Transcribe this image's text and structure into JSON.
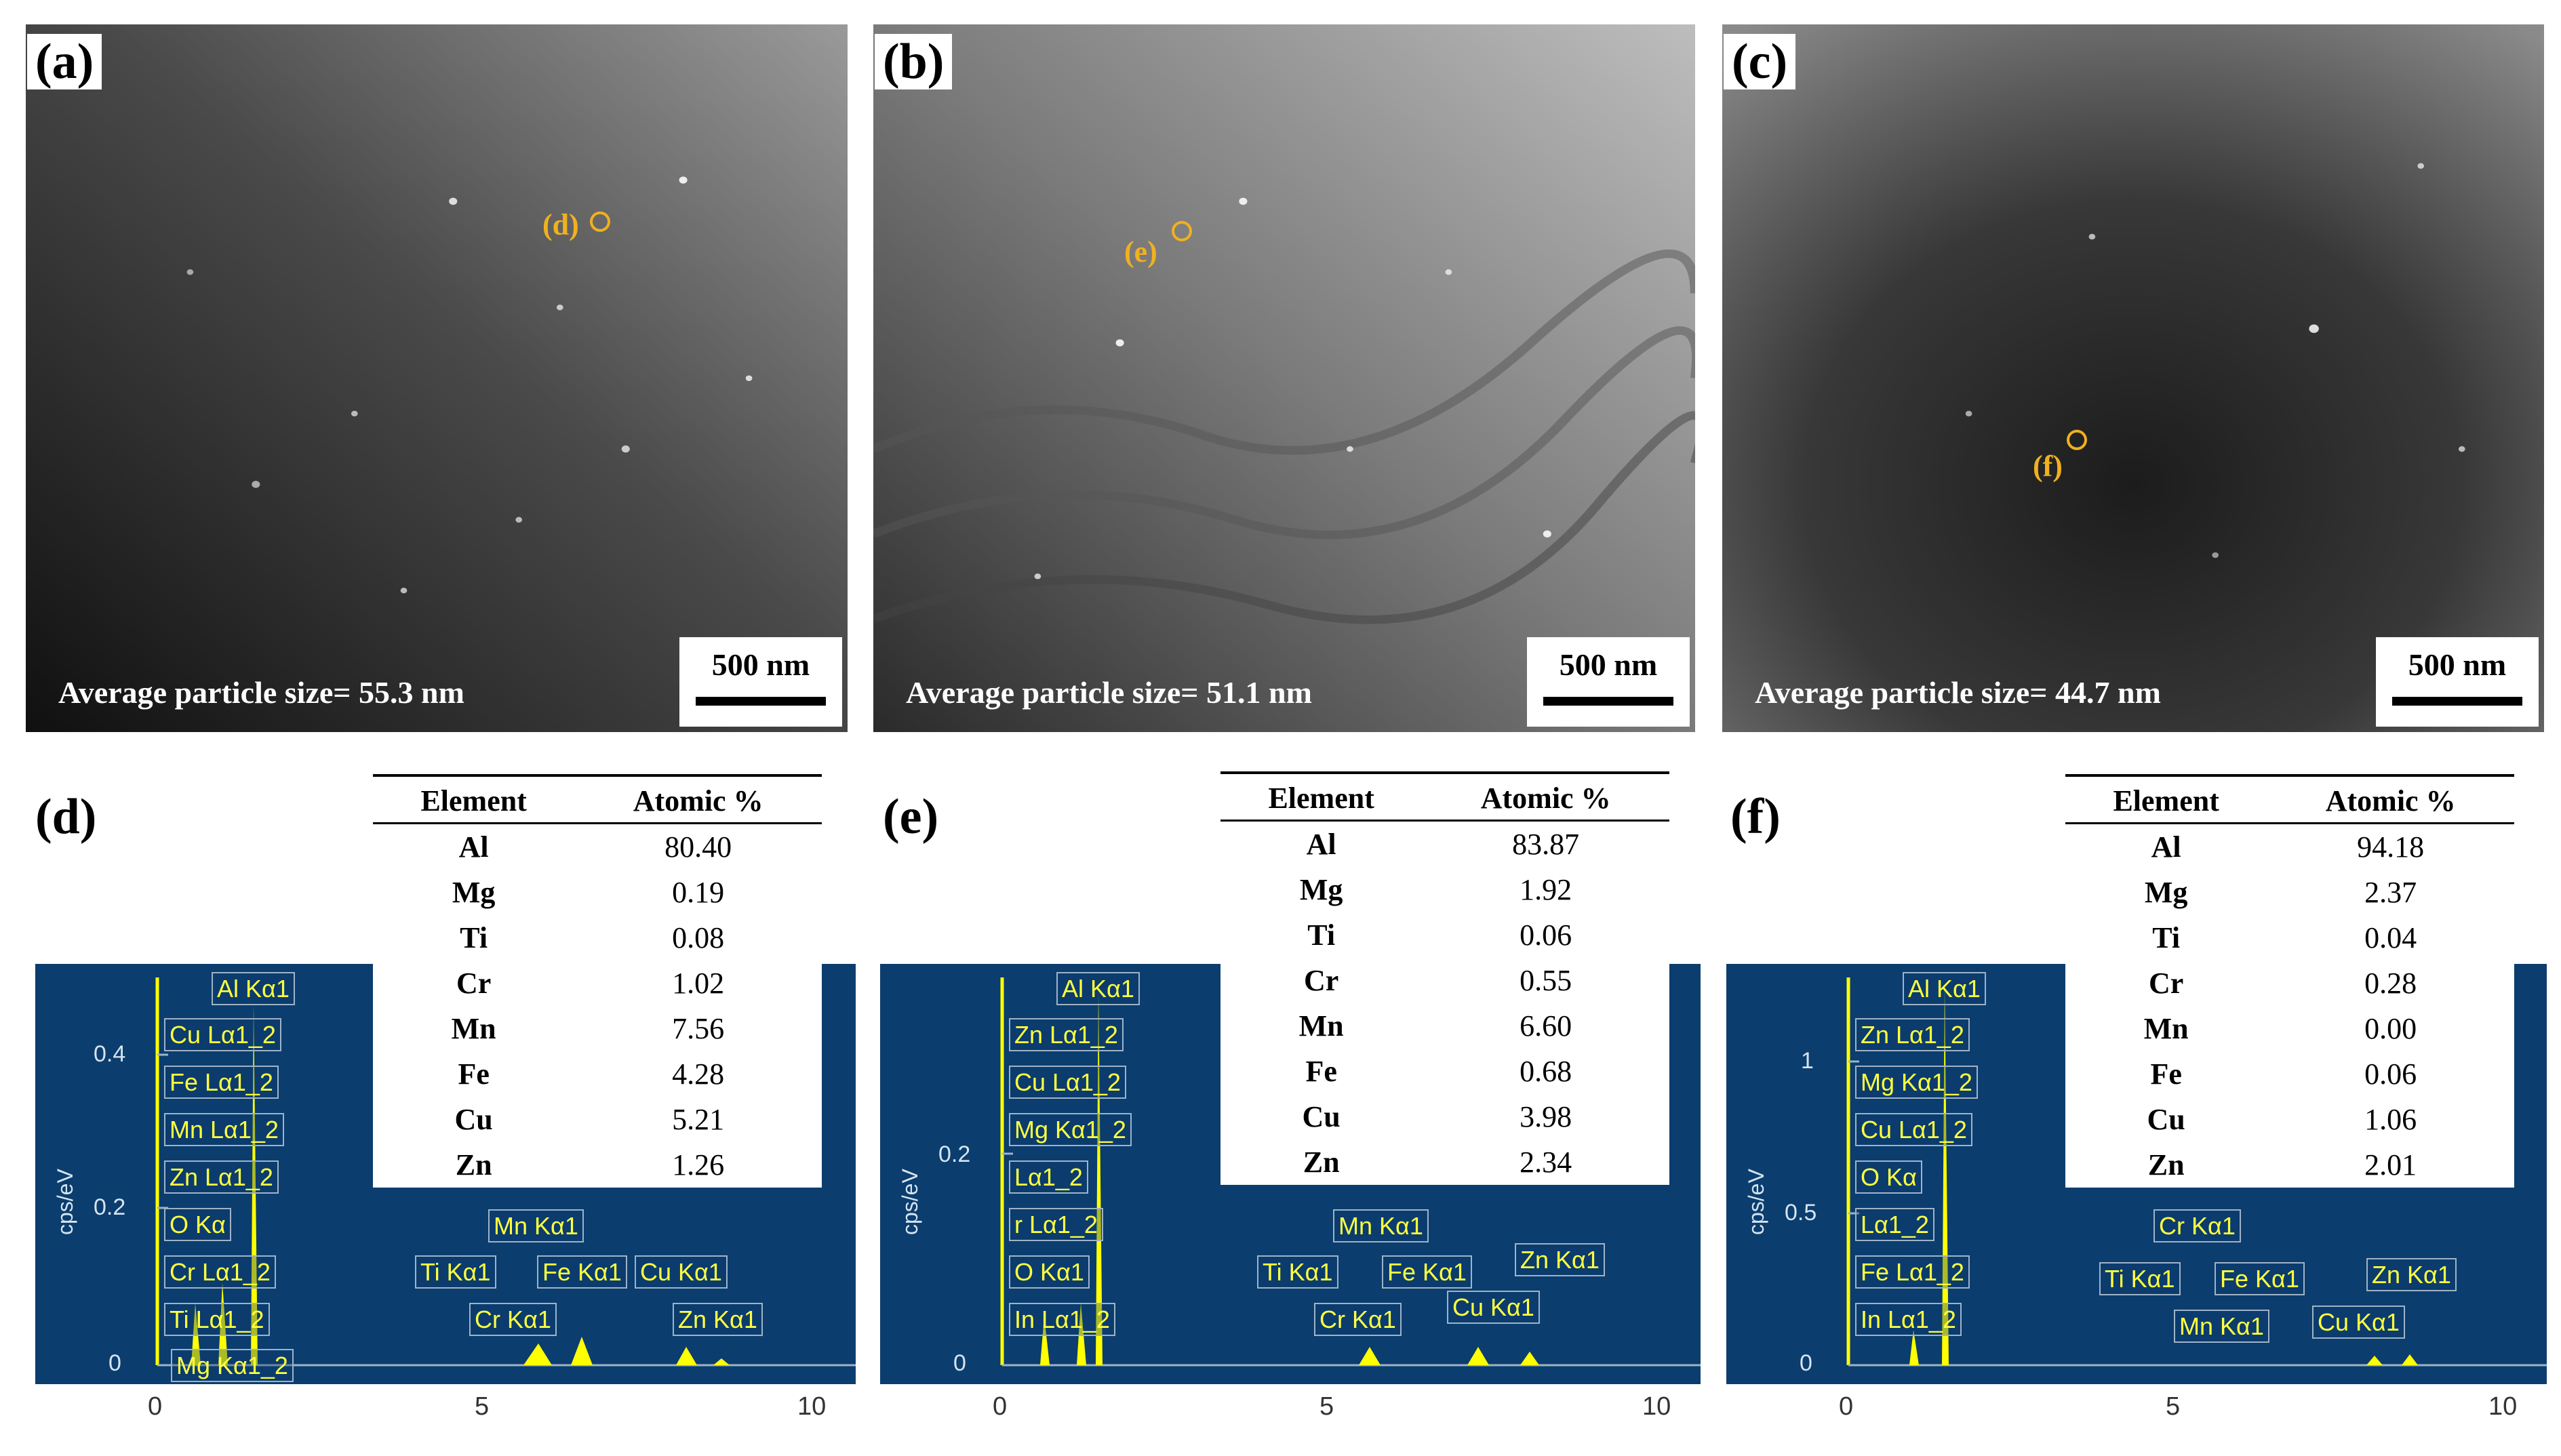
{
  "figure": {
    "panels_top": [
      {
        "label": "(a)",
        "avg_text": "Average particle size= 55.3 nm",
        "scale": "500 nm",
        "marker": "(d)"
      },
      {
        "label": "(b)",
        "avg_text": "Average particle size= 51.1 nm",
        "scale": "500 nm",
        "marker": "(e)"
      },
      {
        "label": "(c)",
        "avg_text": "Average particle size= 44.7 nm",
        "scale": "500 nm",
        "marker": "(f)"
      }
    ],
    "eds_panels": [
      {
        "label": "(d)",
        "table_headers": [
          "Element",
          "Atomic %"
        ],
        "rows": [
          [
            "Al",
            "80.40"
          ],
          [
            "Mg",
            "0.19"
          ],
          [
            "Ti",
            "0.08"
          ],
          [
            "Cr",
            "1.02"
          ],
          [
            "Mn",
            "7.56"
          ],
          [
            "Fe",
            "4.28"
          ],
          [
            "Cu",
            "5.21"
          ],
          [
            "Zn",
            "1.26"
          ]
        ],
        "y_title": "cps/eV",
        "y_ticks": [
          "0.4",
          "0.2",
          "0"
        ],
        "x_ticks": [
          "0",
          "5",
          "10"
        ],
        "peak_labels": [
          "Al Kα1",
          "Cu Lα1_2",
          "Fe Lα1_2",
          "Mn Lα1_2",
          "Zn Lα1_2",
          "O Kα",
          "Cr Lα1_2",
          "Ti Lα1_2",
          "Mg Kα1_2",
          "Ti Kα1",
          "Mn Kα1",
          "Fe Kα1",
          "Cr Kα1",
          "Cu Kα1",
          "Zn Kα1"
        ]
      },
      {
        "label": "(e)",
        "table_headers": [
          "Element",
          "Atomic %"
        ],
        "rows": [
          [
            "Al",
            "83.87"
          ],
          [
            "Mg",
            "1.92"
          ],
          [
            "Ti",
            "0.06"
          ],
          [
            "Cr",
            "0.55"
          ],
          [
            "Mn",
            "6.60"
          ],
          [
            "Fe",
            "0.68"
          ],
          [
            "Cu",
            "3.98"
          ],
          [
            "Zn",
            "2.34"
          ]
        ],
        "y_title": "cps/eV",
        "y_ticks": [
          "0.2",
          "0"
        ],
        "x_ticks": [
          "0",
          "5",
          "10"
        ],
        "peak_labels": [
          "Al Kα1",
          "Zn Lα1_2",
          "Cu Lα1_2",
          "Mg Kα1_2",
          "Lα1_2",
          "r Lα1_2",
          "O Kα1",
          "In Lα1_2",
          "Ti Kα1",
          "Mn Kα1",
          "Fe Kα1",
          "Cr Kα1",
          "Zn Kα1",
          "Cu Kα1"
        ]
      },
      {
        "label": "(f)",
        "table_headers": [
          "Element",
          "Atomic %"
        ],
        "rows": [
          [
            "Al",
            "94.18"
          ],
          [
            "Mg",
            "2.37"
          ],
          [
            "Ti",
            "0.04"
          ],
          [
            "Cr",
            "0.28"
          ],
          [
            "Mn",
            "0.00"
          ],
          [
            "Fe",
            "0.06"
          ],
          [
            "Cu",
            "1.06"
          ],
          [
            "Zn",
            "2.01"
          ]
        ],
        "y_title": "cps/eV",
        "y_ticks": [
          "1",
          "0.5",
          "0"
        ],
        "x_ticks": [
          "0",
          "5",
          "10"
        ],
        "peak_labels": [
          "Al Kα1",
          "Zn Lα1_2",
          "Mg Kα1_2",
          "Cu Lα1_2",
          "O Kα",
          "Lα1_2",
          "Fe Lα1_2",
          "In Lα1_2",
          "Cr Kα1",
          "Ti Kα1",
          "Fe Kα1",
          "Mn Kα1",
          "Zn Kα1",
          "Cu Kα1"
        ]
      }
    ]
  }
}
